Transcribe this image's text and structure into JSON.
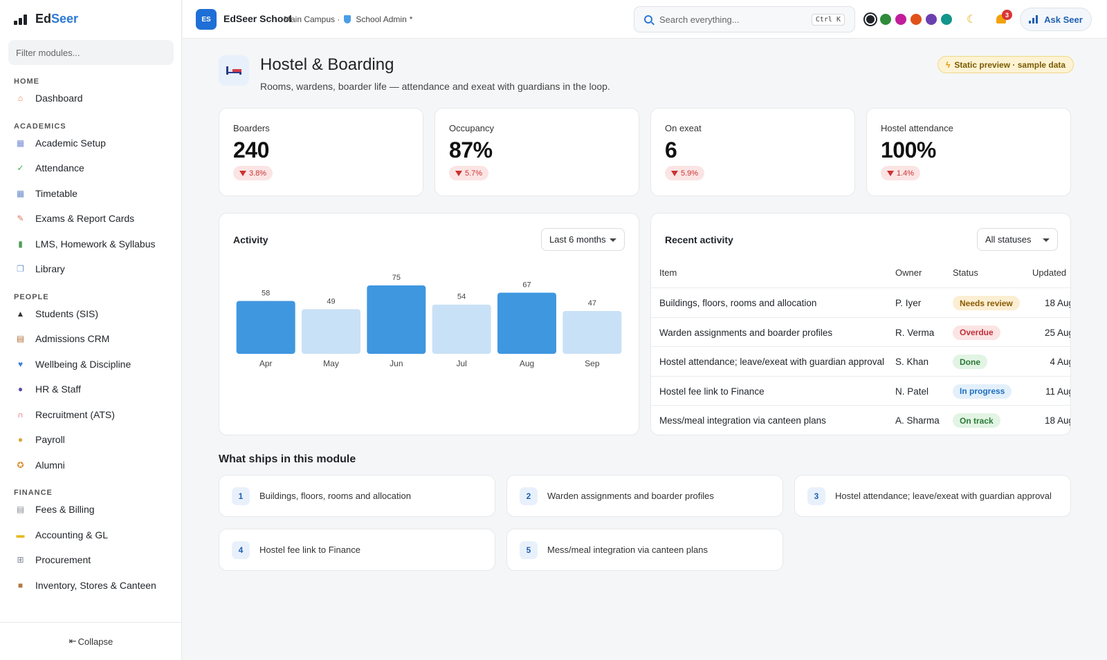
{
  "app": {
    "brand_part1": "Ed",
    "brand_part2": "Seer"
  },
  "sidebar": {
    "filter_placeholder": "Filter modules...",
    "sections": [
      {
        "title": "HOME",
        "items": [
          {
            "label": "Dashboard",
            "icon": "house-icon",
            "color": "#e8843c"
          }
        ]
      },
      {
        "title": "ACADEMICS",
        "items": [
          {
            "label": "Academic Setup",
            "icon": "calendar-icon",
            "color": "#7a8fd6"
          },
          {
            "label": "Attendance",
            "icon": "check-box-icon",
            "color": "#3fae4f"
          },
          {
            "label": "Timetable",
            "icon": "calendar-grid-icon",
            "color": "#6a8ec9"
          },
          {
            "label": "Exams & Report Cards",
            "icon": "memo-icon",
            "color": "#d77a57"
          },
          {
            "label": "LMS, Homework & Syllabus",
            "icon": "books-icon",
            "color": "#4d9d5c"
          },
          {
            "label": "Library",
            "icon": "open-book-icon",
            "color": "#6f9bd1"
          }
        ]
      },
      {
        "title": "PEOPLE",
        "items": [
          {
            "label": "Students (SIS)",
            "icon": "graduation-cap-icon",
            "color": "#333333"
          },
          {
            "label": "Admissions CRM",
            "icon": "clipboard-icon",
            "color": "#b5733f"
          },
          {
            "label": "Wellbeing & Discipline",
            "icon": "heart-icon",
            "color": "#3d7fe0"
          },
          {
            "label": "HR & Staff",
            "icon": "people-icon",
            "color": "#5a4fa8"
          },
          {
            "label": "Recruitment (ATS)",
            "icon": "magnet-icon",
            "color": "#d9364a"
          },
          {
            "label": "Payroll",
            "icon": "money-bag-icon",
            "color": "#d8a53a"
          },
          {
            "label": "Alumni",
            "icon": "medal-icon",
            "color": "#d98a2b"
          }
        ]
      },
      {
        "title": "FINANCE",
        "items": [
          {
            "label": "Fees & Billing",
            "icon": "receipt-icon",
            "color": "#8c8f99"
          },
          {
            "label": "Accounting & GL",
            "icon": "ledger-icon",
            "color": "#e6b820"
          },
          {
            "label": "Procurement",
            "icon": "cart-icon",
            "color": "#7d8696"
          },
          {
            "label": "Inventory, Stores & Canteen",
            "icon": "package-icon",
            "color": "#b07a45"
          }
        ]
      }
    ],
    "collapse_label": "Collapse",
    "collapse_icon": "collapse-arrow-icon"
  },
  "topbar": {
    "school_initials": "ES",
    "school_name": "EdSeer School",
    "campus": "Main Campus ·",
    "role": "School Admin",
    "role_suffix": "*",
    "search_placeholder": "Search everything...",
    "search_shortcut": "Ctrl K",
    "theme_colors": [
      "#1f2328",
      "#2e8b3a",
      "#c21d9a",
      "#e0521a",
      "#6b3fb0",
      "#12958a"
    ],
    "notification_count": "3",
    "ask_label": "Ask Seer"
  },
  "page": {
    "title": "Hostel & Boarding",
    "subtitle": "Rooms, wardens, boarder life — attendance and exeat with guardians in the loop.",
    "preview_badge": "Static preview · sample data"
  },
  "kpis": [
    {
      "label": "Boarders",
      "value": "240",
      "delta": "3.8%"
    },
    {
      "label": "Occupancy",
      "value": "87%",
      "delta": "5.7%"
    },
    {
      "label": "On exeat",
      "value": "6",
      "delta": "5.9%"
    },
    {
      "label": "Hostel attendance",
      "value": "100%",
      "delta": "1.4%"
    }
  ],
  "activity": {
    "title": "Activity",
    "range_selected": "Last 6 months"
  },
  "chart_data": {
    "type": "bar",
    "categories": [
      "Apr",
      "May",
      "Jun",
      "Jul",
      "Aug",
      "Sep"
    ],
    "values": [
      58,
      49,
      75,
      54,
      67,
      47
    ],
    "colors": [
      "#3f97e0",
      "#c9e1f6",
      "#3f97e0",
      "#c9e1f6",
      "#3f97e0",
      "#c9e1f6"
    ],
    "title": "",
    "xlabel": "",
    "ylabel": "",
    "ylim": [
      0,
      75
    ],
    "grid": false
  },
  "recent": {
    "title": "Recent activity",
    "filter_selected": "All statuses",
    "columns": [
      "Item",
      "Owner",
      "Status",
      "Updated"
    ],
    "rows": [
      {
        "item": "Buildings, floors, rooms and allocation",
        "owner": "P. Iyer",
        "status": "Needs review",
        "updated": "18 Aug"
      },
      {
        "item": "Warden assignments and boarder profiles",
        "owner": "R. Verma",
        "status": "Overdue",
        "updated": "25 Aug"
      },
      {
        "item": "Hostel attendance; leave/exeat with guardian approval",
        "owner": "S. Khan",
        "status": "Done",
        "updated": "4 Aug"
      },
      {
        "item": "Hostel fee link to Finance",
        "owner": "N. Patel",
        "status": "In progress",
        "updated": "11 Aug"
      },
      {
        "item": "Mess/meal integration via canteen plans",
        "owner": "A. Sharma",
        "status": "On track",
        "updated": "18 Aug"
      }
    ],
    "status_styles": {
      "Needs review": {
        "bg": "#fbeed2",
        "fg": "#8a5a00"
      },
      "Overdue": {
        "bg": "#fbe4e4",
        "fg": "#c0303a"
      },
      "Done": {
        "bg": "#e2f4e4",
        "fg": "#2b7a37"
      },
      "In progress": {
        "bg": "#e3f0fb",
        "fg": "#1e6fc0"
      },
      "On track": {
        "bg": "#e2f4e4",
        "fg": "#2b7a37"
      }
    }
  },
  "ships": {
    "title": "What ships in this module",
    "items": [
      {
        "num": "1",
        "label": "Buildings, floors, rooms and allocation"
      },
      {
        "num": "2",
        "label": "Warden assignments and boarder profiles"
      },
      {
        "num": "3",
        "label": "Hostel attendance; leave/exeat with guardian approval"
      },
      {
        "num": "4",
        "label": "Hostel fee link to Finance"
      },
      {
        "num": "5",
        "label": "Mess/meal integration via canteen plans"
      }
    ]
  }
}
